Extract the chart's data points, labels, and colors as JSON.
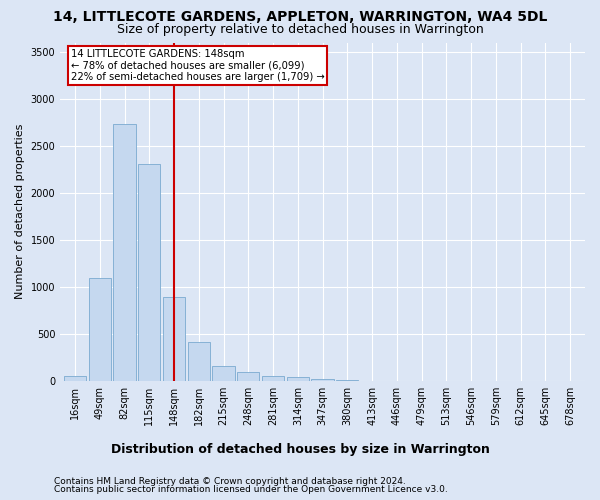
{
  "title": "14, LITTLECOTE GARDENS, APPLETON, WARRINGTON, WA4 5DL",
  "subtitle": "Size of property relative to detached houses in Warrington",
  "xlabel": "Distribution of detached houses by size in Warrington",
  "ylabel": "Number of detached properties",
  "categories": [
    "16sqm",
    "49sqm",
    "82sqm",
    "115sqm",
    "148sqm",
    "182sqm",
    "215sqm",
    "248sqm",
    "281sqm",
    "314sqm",
    "347sqm",
    "380sqm",
    "413sqm",
    "446sqm",
    "479sqm",
    "513sqm",
    "546sqm",
    "579sqm",
    "612sqm",
    "645sqm",
    "678sqm"
  ],
  "values": [
    50,
    1090,
    2730,
    2310,
    890,
    415,
    155,
    90,
    55,
    40,
    15,
    5,
    2,
    1,
    0,
    0,
    0,
    0,
    0,
    0,
    0
  ],
  "bar_color": "#c5d8ef",
  "bar_edge_color": "#7aaad0",
  "vline_index": 4,
  "vline_color": "#cc0000",
  "annotation_line1": "14 LITTLECOTE GARDENS: 148sqm",
  "annotation_line2": "← 78% of detached houses are smaller (6,099)",
  "annotation_line3": "22% of semi-detached houses are larger (1,709) →",
  "annotation_box_color": "#cc0000",
  "ylim": [
    0,
    3600
  ],
  "yticks": [
    0,
    500,
    1000,
    1500,
    2000,
    2500,
    3000,
    3500
  ],
  "footer1": "Contains HM Land Registry data © Crown copyright and database right 2024.",
  "footer2": "Contains public sector information licensed under the Open Government Licence v3.0.",
  "bg_color": "#dce6f5",
  "plot_bg_color": "#dce6f5",
  "grid_color": "#ffffff",
  "title_fontsize": 10,
  "subtitle_fontsize": 9,
  "xlabel_fontsize": 9,
  "ylabel_fontsize": 8,
  "tick_fontsize": 7,
  "footer_fontsize": 6.5
}
